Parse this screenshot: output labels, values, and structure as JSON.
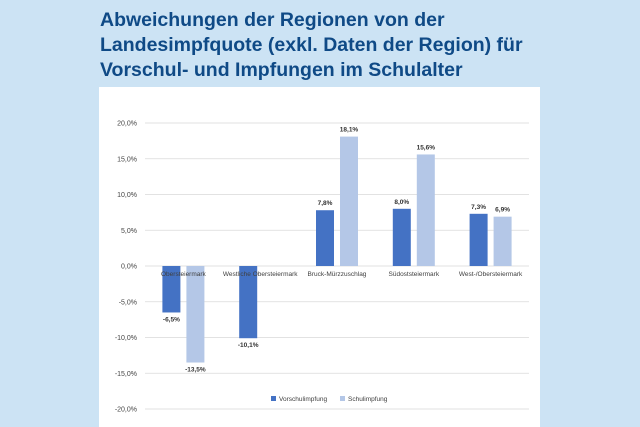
{
  "title_lines": [
    "Abweichungen der Regionen von der",
    "Landesimpfquote (exkl. Daten der Region) für",
    "Vorschul- und Impfungen im Schulalter"
  ],
  "colors": {
    "background": "#cce3f4",
    "title": "#0f4a86",
    "series_vorschul": "#4472c4",
    "series_schul": "#b4c7e7"
  },
  "chart_data": {
    "type": "bar",
    "categories": [
      "Liezen / Obersteiermark",
      "Westliche Obersteiermark",
      "Bruck-Mürzzuschlag",
      "Südoststeiermark",
      "West-/Obersteiermark"
    ],
    "category_labels_visible": [
      "Obersteiermark",
      "Westliche Obersteiermark",
      "Bruck-Mürzzuschlag",
      "Südoststeiermark",
      "West-/Obersteiermark"
    ],
    "series": [
      {
        "name": "Vorschulimpfung",
        "values": [
          -6.5,
          -10.1,
          7.8,
          8.0,
          7.3
        ],
        "labels": [
          "-6,5%",
          "-10,1%",
          "7,8%",
          "8,0%",
          "7,3%"
        ]
      },
      {
        "name": "Schulimpfung",
        "values": [
          -13.5,
          null,
          18.1,
          15.6,
          6.9
        ],
        "labels": [
          "-13,5%",
          "",
          "18,1%",
          "15,6%",
          "6,9%"
        ]
      }
    ],
    "ylim": [
      -20,
      20
    ],
    "yticks": [
      20,
      15,
      10,
      5,
      0,
      -5,
      -10,
      -15,
      -20
    ],
    "ytick_labels": [
      "20,0%",
      "15,0%",
      "10,0%",
      "5,0%",
      "0,0%",
      "-5,0%",
      "-10,0%",
      "-15,0%",
      "-20,0%"
    ],
    "grid": true,
    "legend_position": "bottom"
  }
}
